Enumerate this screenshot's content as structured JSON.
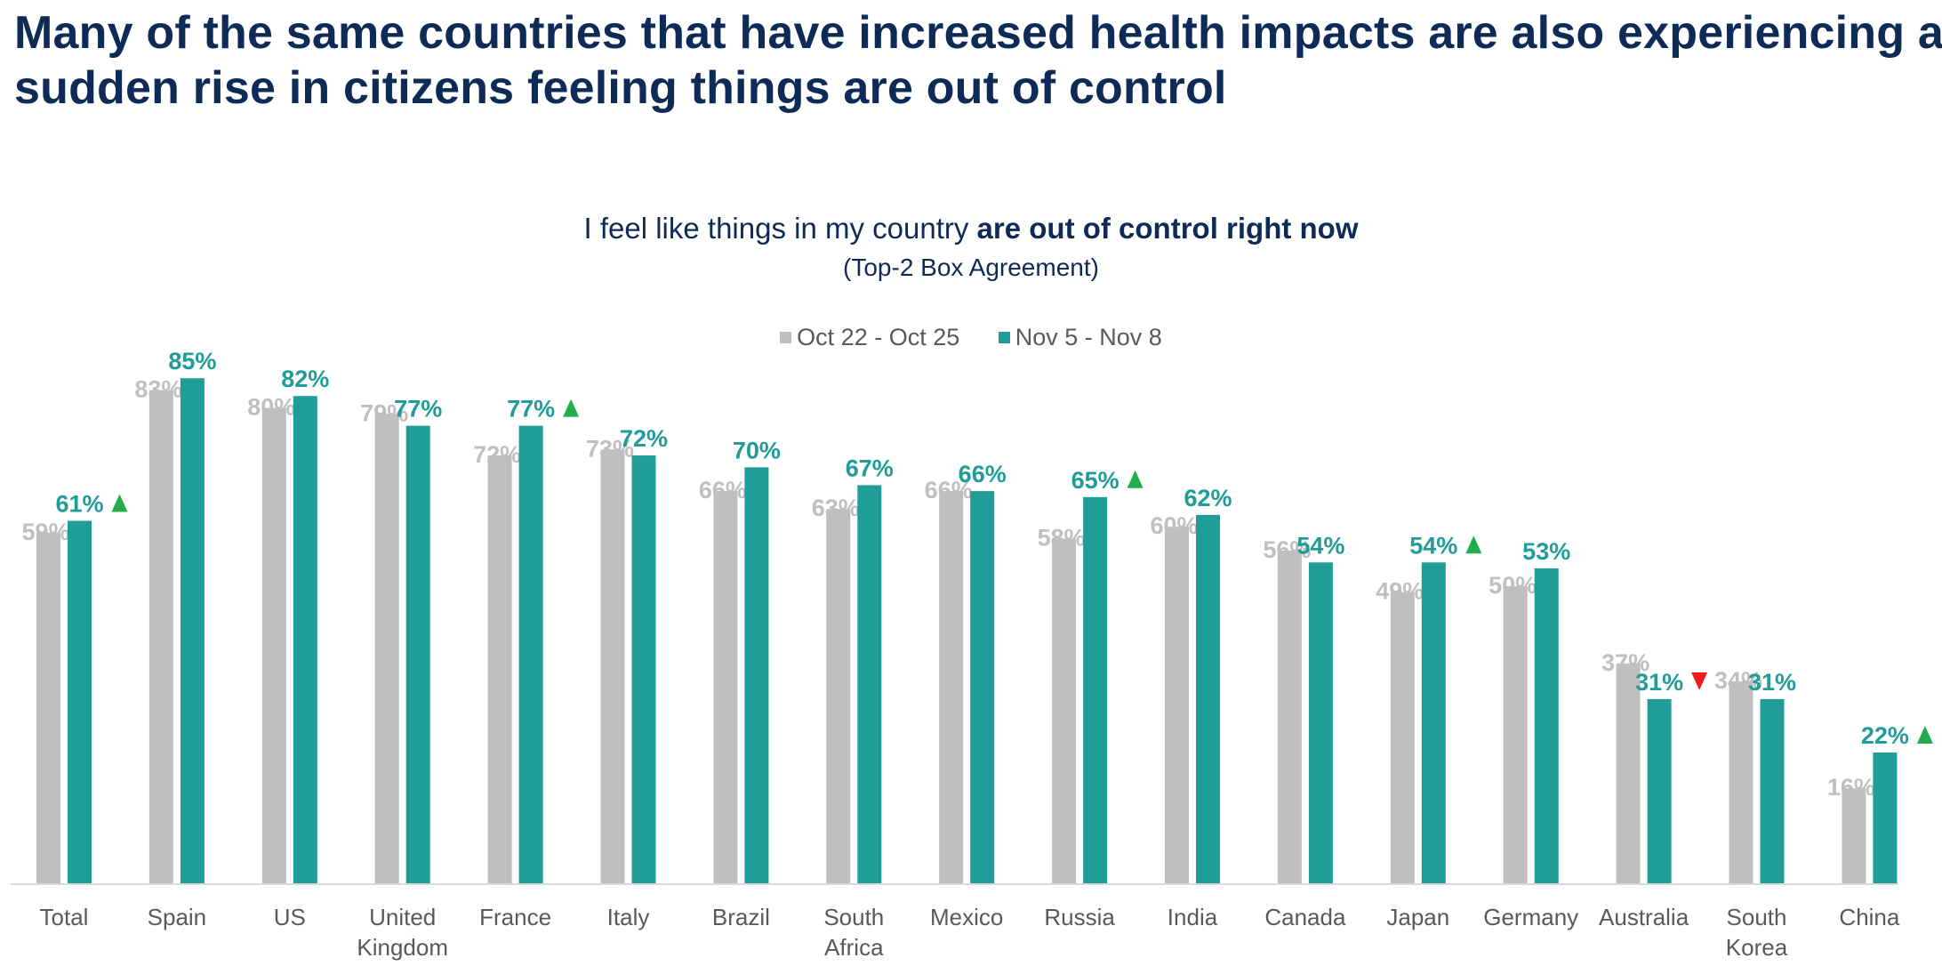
{
  "title": "Many of the same countries that have increased health impacts are also experiencing a sudden rise in citizens feeling things are out of control",
  "chart_data": {
    "type": "bar",
    "title_normal": "I feel like things in my country ",
    "title_bold": "are out of control right now",
    "subtitle": "(Top-2 Box Agreement)",
    "categories": [
      [
        "Total"
      ],
      [
        "Spain"
      ],
      [
        "US"
      ],
      [
        "United",
        "Kingdom"
      ],
      [
        "France"
      ],
      [
        "Italy"
      ],
      [
        "Brazil"
      ],
      [
        "South",
        "Africa"
      ],
      [
        "Mexico"
      ],
      [
        "Russia"
      ],
      [
        "India"
      ],
      [
        "Canada"
      ],
      [
        "Japan"
      ],
      [
        "Germany"
      ],
      [
        "Australia"
      ],
      [
        "South",
        "Korea"
      ],
      [
        "China"
      ]
    ],
    "series": [
      {
        "name": "Oct 22 - Oct 25",
        "color": "#bfbfbf",
        "values": [
          59,
          83,
          80,
          79,
          72,
          73,
          66,
          63,
          66,
          58,
          60,
          56,
          49,
          50,
          37,
          34,
          16
        ]
      },
      {
        "name": "Nov 5 - Nov 8",
        "color": "#209c99",
        "values": [
          61,
          85,
          82,
          77,
          77,
          72,
          70,
          67,
          66,
          65,
          62,
          54,
          54,
          53,
          31,
          31,
          22
        ]
      }
    ],
    "value_format": "{v}%",
    "significance": [
      "up",
      null,
      null,
      null,
      "up",
      null,
      null,
      null,
      null,
      "up",
      null,
      null,
      "up",
      null,
      "down",
      null,
      "up"
    ],
    "significance_colors": {
      "up": "#22ac4c",
      "down": "#ee1c1c"
    },
    "ylim": [
      0,
      100
    ],
    "grid": false,
    "legend": "top-center"
  }
}
